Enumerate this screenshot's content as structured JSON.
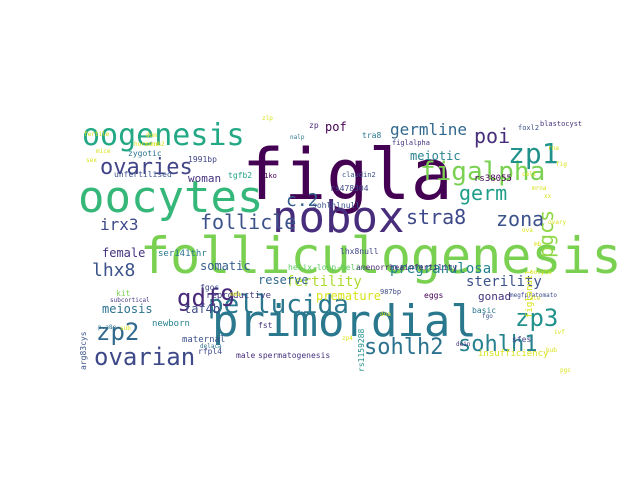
{
  "word_cloud": {
    "words": [
      {
        "text": "folliculogenesis",
        "color": "#7ad151"
      },
      {
        "text": "figla",
        "color": "#440154"
      },
      {
        "text": "primordial",
        "color": "#2a788e"
      },
      {
        "text": "oocytes",
        "color": "#35b779"
      },
      {
        "text": "nobox",
        "color": "#472d7b"
      },
      {
        "text": "oogenesis",
        "color": "#22a884"
      },
      {
        "text": "figalpha",
        "color": "#7ad151"
      },
      {
        "text": "pellucida",
        "color": "#2a788e"
      },
      {
        "text": "zp1",
        "color": "#21918c"
      },
      {
        "text": "ovaries",
        "color": "#414487"
      },
      {
        "text": "follicle",
        "color": "#3b528b"
      },
      {
        "text": "gdf9",
        "color": "#482878"
      },
      {
        "text": "zp2",
        "color": "#31688e"
      },
      {
        "text": "zp3",
        "color": "#21918c"
      },
      {
        "text": "ovarian",
        "color": "#3e4989"
      },
      {
        "text": "sohlh2",
        "color": "#2c728e"
      },
      {
        "text": "sohlh1",
        "color": "#26828e"
      },
      {
        "text": "zona",
        "color": "#3b528b"
      },
      {
        "text": "germ",
        "color": "#1f9e89"
      },
      {
        "text": "stra8",
        "color": "#3e4989"
      },
      {
        "text": "poi",
        "color": "#472d7b"
      },
      {
        "text": "pgcs",
        "color": "#8fd744"
      },
      {
        "text": "c.2",
        "color": "#355f8d"
      },
      {
        "text": "lhx8",
        "color": "#3b528b"
      },
      {
        "text": "germline",
        "color": "#31688e"
      },
      {
        "text": "irx3",
        "color": "#3e4989"
      },
      {
        "text": "meiotic",
        "color": "#26828e"
      },
      {
        "text": "pof",
        "color": "#440154"
      },
      {
        "text": "woman",
        "color": "#46327e"
      },
      {
        "text": "1991bp",
        "color": "#404688"
      },
      {
        "text": "fertility",
        "color": "#addc30"
      },
      {
        "text": "pregranulosa",
        "color": "#25848e"
      },
      {
        "text": "sterility",
        "color": "#3b528b"
      },
      {
        "text": "somatic",
        "color": "#355f8d"
      },
      {
        "text": "female",
        "color": "#46327e"
      },
      {
        "text": "ser141thr",
        "color": "#2a788e"
      },
      {
        "text": "reserve",
        "color": "#31688e"
      },
      {
        "text": "premature",
        "color": "#d8e219"
      },
      {
        "text": "meiosis",
        "color": "#2c728e"
      },
      {
        "text": "taf4b",
        "color": "#3e4989"
      },
      {
        "text": "reproductive",
        "color": "#443983"
      },
      {
        "text": "gonad",
        "color": "#46327e"
      },
      {
        "text": "insufficiency",
        "color": "#d8e219"
      },
      {
        "text": "spermatogenesis",
        "color": "#46327e"
      },
      {
        "text": "maternal",
        "color": "#3b528b"
      },
      {
        "text": "newborn",
        "color": "#26828e"
      },
      {
        "text": "amenorrheainfertility",
        "color": "#482878"
      },
      {
        "text": "helix-loop-helix",
        "color": "#5ec962"
      },
      {
        "text": "rs478304",
        "color": "#3e4989"
      },
      {
        "text": "rs38055",
        "color": "#440154"
      },
      {
        "text": "sohlhlnull",
        "color": "#3b528b"
      },
      {
        "text": "lhx8null",
        "color": "#404688"
      },
      {
        "text": "tgfb2",
        "color": "#1fa188"
      },
      {
        "text": "fgos",
        "color": "#3e4989"
      },
      {
        "text": "fst",
        "color": "#46327e"
      },
      {
        "text": "eggs",
        "color": "#440154"
      },
      {
        "text": "sfes",
        "color": "#404688"
      },
      {
        "text": "basic",
        "color": "#2a788e"
      },
      {
        "text": "kit",
        "color": "#7ad151"
      },
      {
        "text": "unfertilised",
        "color": "#3b528b"
      },
      {
        "text": "zygotic",
        "color": "#2c728e"
      },
      {
        "text": "rfpl4",
        "color": "#3e4989"
      },
      {
        "text": "male",
        "color": "#472d7b"
      },
      {
        "text": "arg83cys",
        "color": "#3b528b"
      },
      {
        "text": "rs1159288",
        "color": "#21918c"
      },
      {
        "text": "blastocyst",
        "color": "#46327e"
      },
      {
        "text": "foxl2",
        "color": "#3b528b"
      },
      {
        "text": "zp",
        "color": "#482878"
      },
      {
        "text": "nalp",
        "color": "#2a788e"
      },
      {
        "text": "tra8",
        "color": "#2a788e"
      },
      {
        "text": "j1ko",
        "color": "#440154"
      },
      {
        "text": "claudin2",
        "color": "#3b528b"
      },
      {
        "text": "subcortical",
        "color": "#443983"
      },
      {
        "text": "delaca",
        "color": "#2c728e"
      },
      {
        "text": "figlalpha",
        "color": "#46327e"
      },
      {
        "text": "p.a8e",
        "color": "#2c728e"
      },
      {
        "text": "dein",
        "color": "#46327e"
      },
      {
        "text": "fgo",
        "color": "#3b528b"
      },
      {
        "text": "987bp",
        "color": "#3e4989"
      },
      {
        "text": "megfp/atomato",
        "color": "#3e4989"
      },
      {
        "text": "figlanull",
        "color": "#d8e219"
      },
      {
        "text": "fertile",
        "color": "#d8e219"
      },
      {
        "text": "mice",
        "color": "#d8e219"
      },
      {
        "text": "sex",
        "color": "#d8e219"
      },
      {
        "text": "zlp",
        "color": "#d8e219"
      },
      {
        "text": "hormone",
        "color": "#d8e219"
      },
      {
        "text": "dom",
        "color": "#d8e219"
      },
      {
        "text": "ovary",
        "color": "#d8e219"
      },
      {
        "text": "rnh2",
        "color": "#d8e219"
      },
      {
        "text": "xx",
        "color": "#d8e219"
      },
      {
        "text": "ova",
        "color": "#d8e219"
      },
      {
        "text": "mb",
        "color": "#d8e219"
      },
      {
        "text": "oocyte",
        "color": "#d8e219"
      },
      {
        "text": "late",
        "color": "#d8e219"
      },
      {
        "text": "sub",
        "color": "#d8e219"
      },
      {
        "text": "dna",
        "color": "#d8e219"
      },
      {
        "text": "zp4",
        "color": "#d8e219"
      },
      {
        "text": "emb",
        "color": "#d8e219"
      },
      {
        "text": "hub",
        "color": "#d8e219"
      },
      {
        "text": "ivf",
        "color": "#d8e219"
      },
      {
        "text": "pgc",
        "color": "#d8e219"
      },
      {
        "text": "rna",
        "color": "#d8e219"
      },
      {
        "text": "fig",
        "color": "#d8e219"
      },
      {
        "text": "cell",
        "color": "#d8e219"
      },
      {
        "text": "mrna",
        "color": "#d8e219"
      }
    ]
  }
}
